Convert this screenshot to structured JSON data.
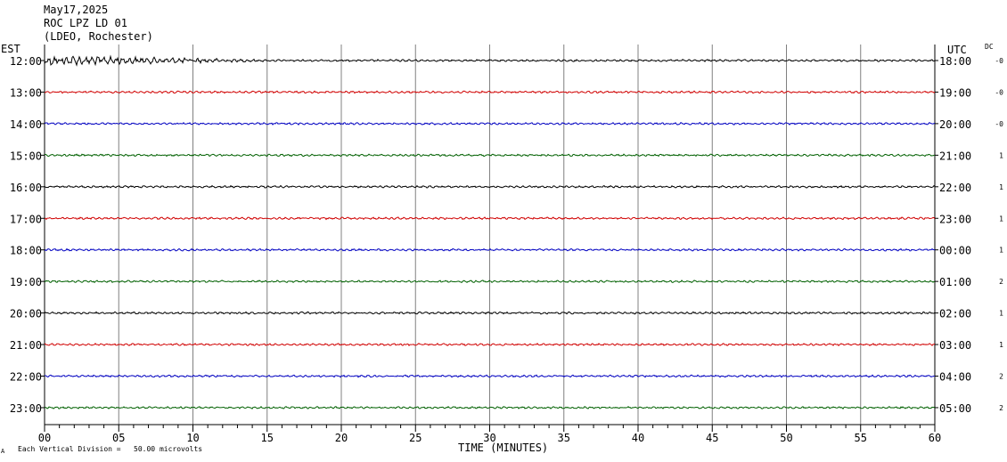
{
  "header": {
    "date": "May17,2025",
    "station": "ROC LPZ LD 01",
    "network": "(LDEO, Rochester)"
  },
  "labels": {
    "left_tz": "EST",
    "right_tz": "UTC",
    "dc_header": "DC",
    "footer_note": "Each Vertical Division =   50.00 microvolts",
    "footer_mark": "A"
  },
  "colors": {
    "trace_cycle": [
      "#000000",
      "#d00000",
      "#0000c0",
      "#006000"
    ],
    "grid": "#808080"
  },
  "chart_data": {
    "type": "line",
    "title": "",
    "xlabel": "TIME (MINUTES)",
    "ylabel": "",
    "xlim": [
      0,
      60
    ],
    "x_ticks": [
      0,
      5,
      10,
      15,
      20,
      25,
      30,
      35,
      40,
      45,
      50,
      55,
      60
    ],
    "x_tick_labels": [
      "00",
      "05",
      "10",
      "15",
      "20",
      "25",
      "30",
      "35",
      "40",
      "45",
      "50",
      "55",
      "60"
    ],
    "grid_vertical": true,
    "rows": [
      {
        "est": "12:00",
        "utc": "18:00",
        "dc": "-0",
        "color": "#000000",
        "activity": "earthquake",
        "event_start_min": 0,
        "event_end_min": 15
      },
      {
        "est": "13:00",
        "utc": "19:00",
        "dc": "-0",
        "color": "#d00000"
      },
      {
        "est": "14:00",
        "utc": "20:00",
        "dc": "-0",
        "color": "#0000c0"
      },
      {
        "est": "15:00",
        "utc": "21:00",
        "dc": "1",
        "color": "#006000"
      },
      {
        "est": "16:00",
        "utc": "22:00",
        "dc": "1",
        "color": "#000000"
      },
      {
        "est": "17:00",
        "utc": "23:00",
        "dc": "1",
        "color": "#d00000"
      },
      {
        "est": "18:00",
        "utc": "00:00",
        "dc": "1",
        "color": "#0000c0"
      },
      {
        "est": "19:00",
        "utc": "01:00",
        "dc": "2",
        "color": "#006000"
      },
      {
        "est": "20:00",
        "utc": "02:00",
        "dc": "1",
        "color": "#000000"
      },
      {
        "est": "21:00",
        "utc": "03:00",
        "dc": "1",
        "color": "#d00000"
      },
      {
        "est": "22:00",
        "utc": "04:00",
        "dc": "2",
        "color": "#0000c0"
      },
      {
        "est": "23:00",
        "utc": "05:00",
        "dc": "2",
        "color": "#006000"
      }
    ]
  }
}
